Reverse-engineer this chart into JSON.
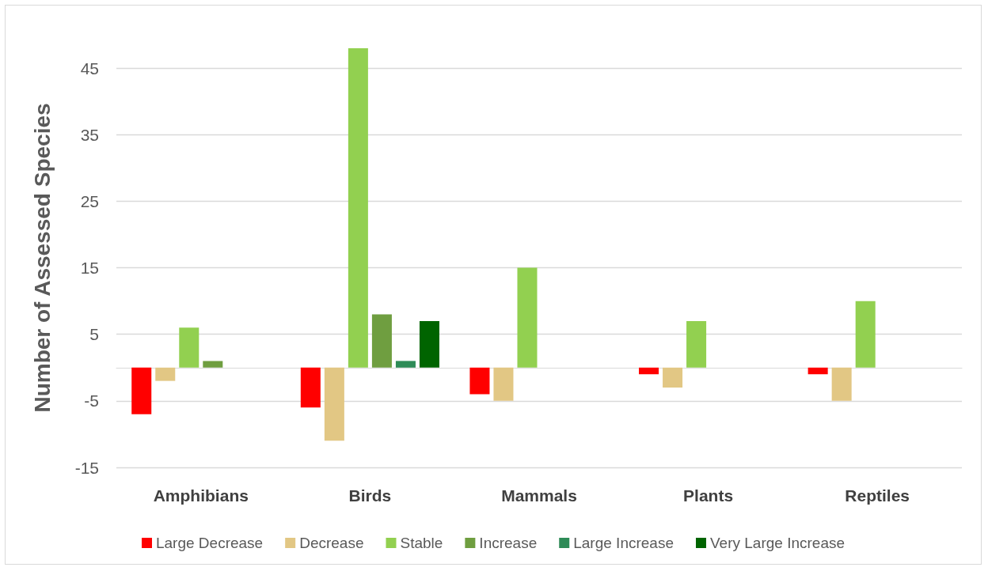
{
  "chart_data": {
    "type": "bar",
    "ylabel": "Number of Assessed Species",
    "categories": [
      "Amphibians",
      "Birds",
      "Mammals",
      "Plants",
      "Reptiles"
    ],
    "series": [
      {
        "name": "Large Decrease",
        "color": "#ff0000",
        "values": [
          -7,
          -6,
          -4,
          -1,
          -1
        ]
      },
      {
        "name": "Decrease",
        "color": "#e2c784",
        "values": [
          -2,
          -11,
          -5,
          -3,
          -5
        ]
      },
      {
        "name": "Stable",
        "color": "#92d050",
        "values": [
          6,
          48,
          15,
          7,
          10
        ]
      },
      {
        "name": "Increase",
        "color": "#6f9e40",
        "values": [
          1,
          8,
          null,
          null,
          null
        ]
      },
      {
        "name": "Large Increase",
        "color": "#2e8b57",
        "values": [
          null,
          1,
          null,
          null,
          null
        ]
      },
      {
        "name": "Very Large Increase",
        "color": "#006400",
        "values": [
          null,
          7,
          null,
          null,
          null
        ]
      }
    ],
    "ylim": [
      -15,
      48
    ],
    "yticks": [
      -15,
      -5,
      5,
      15,
      25,
      35,
      45
    ],
    "grid": "y",
    "legend": "bottom"
  }
}
